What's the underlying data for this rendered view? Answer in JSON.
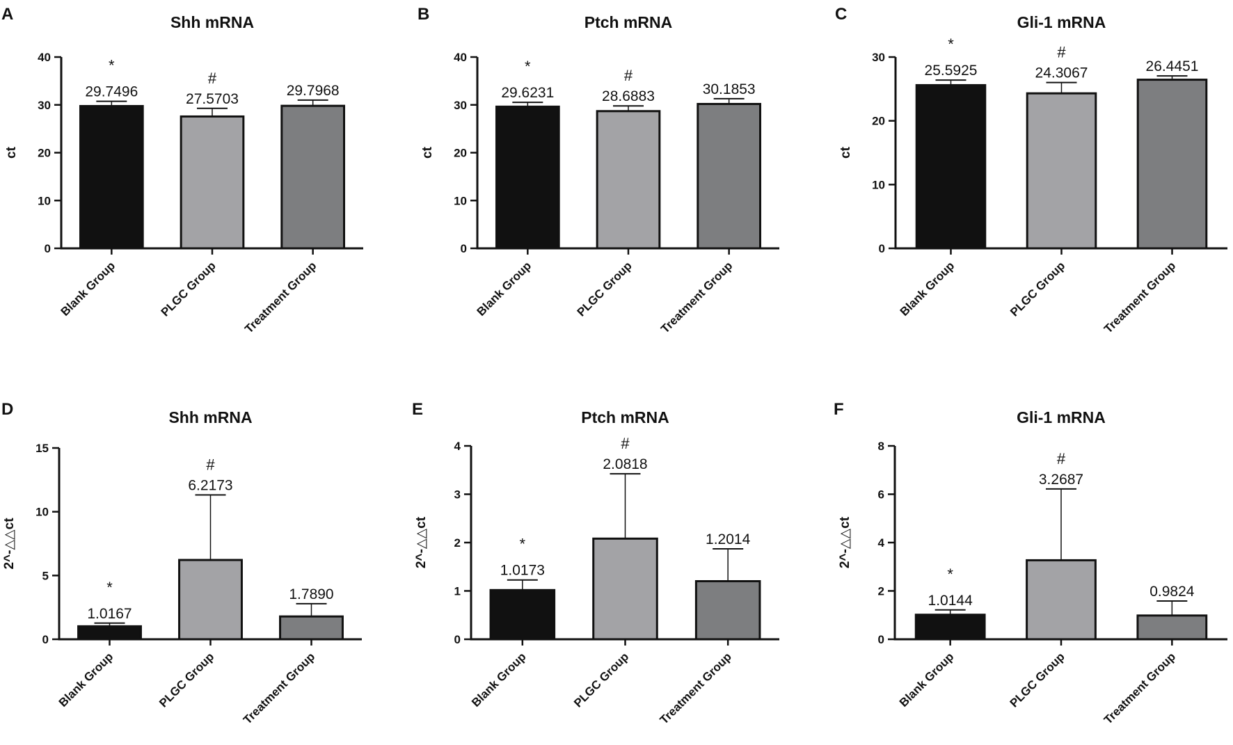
{
  "chart_data": [
    {
      "type": "bar",
      "panel": "A",
      "title": "Shh mRNA",
      "xlabel": "",
      "ylabel": "ct",
      "ylim": [
        0,
        40
      ],
      "yticks": [
        "0",
        "10",
        "20",
        "30",
        "40"
      ],
      "categories": [
        "Blank Group",
        "PLGC Group",
        "Treatment Group"
      ],
      "values": [
        29.7496,
        27.5703,
        29.7968
      ],
      "errors": [
        1.0,
        1.7,
        1.2
      ],
      "value_labels": [
        "29.7496",
        "27.5703",
        "29.7968"
      ],
      "markers": [
        "*",
        "#",
        ""
      ],
      "colors": [
        "#111111",
        "#a3a3a6",
        "#7d7e80"
      ]
    },
    {
      "type": "bar",
      "panel": "B",
      "title": "Ptch mRNA",
      "xlabel": "",
      "ylabel": "ct",
      "ylim": [
        0,
        40
      ],
      "yticks": [
        "0",
        "10",
        "20",
        "30",
        "40"
      ],
      "categories": [
        "Blank Group",
        "PLGC Group",
        "Treatment Group"
      ],
      "values": [
        29.6231,
        28.6883,
        30.1853
      ],
      "errors": [
        0.9,
        1.1,
        1.1
      ],
      "value_labels": [
        "29.6231",
        "28.6883",
        "30.1853"
      ],
      "markers": [
        "*",
        "#",
        ""
      ],
      "colors": [
        "#111111",
        "#a3a3a6",
        "#7d7e80"
      ]
    },
    {
      "type": "bar",
      "panel": "C",
      "title": "Gli-1 mRNA",
      "xlabel": "",
      "ylabel": "ct",
      "ylim": [
        0,
        30
      ],
      "yticks": [
        "0",
        "10",
        "20",
        "30"
      ],
      "categories": [
        "Blank Group",
        "PLGC Group",
        "Treatment Group"
      ],
      "values": [
        25.5925,
        24.3067,
        26.4451
      ],
      "errors": [
        0.8,
        1.7,
        0.6
      ],
      "value_labels": [
        "25.5925",
        "24.3067",
        "26.4451"
      ],
      "markers": [
        "*",
        "#",
        ""
      ],
      "colors": [
        "#111111",
        "#a3a3a6",
        "#7d7e80"
      ]
    },
    {
      "type": "bar",
      "panel": "D",
      "title": "Shh mRNA",
      "xlabel": "",
      "ylabel": "2^-△△ct",
      "ylim": [
        0,
        15
      ],
      "yticks": [
        "0",
        "5",
        "10",
        "15"
      ],
      "categories": [
        "Blank Group",
        "PLGC Group",
        "Treatment Group"
      ],
      "values": [
        1.0167,
        6.2173,
        1.789
      ],
      "errors": [
        0.25,
        5.1,
        1.0
      ],
      "value_labels": [
        "1.0167",
        "6.2173",
        "1.7890"
      ],
      "markers": [
        "*",
        "#",
        ""
      ],
      "colors": [
        "#111111",
        "#a3a3a6",
        "#7d7e80"
      ]
    },
    {
      "type": "bar",
      "panel": "E",
      "title": "Ptch mRNA",
      "xlabel": "",
      "ylabel": "2^-△△ct",
      "ylim": [
        0,
        4
      ],
      "yticks": [
        "0",
        "1",
        "2",
        "3",
        "4"
      ],
      "categories": [
        "Blank Group",
        "PLGC Group",
        "Treatment Group"
      ],
      "values": [
        1.0173,
        2.0818,
        1.2014
      ],
      "errors": [
        0.21,
        1.34,
        0.67
      ],
      "value_labels": [
        "1.0173",
        "2.0818",
        "1.2014"
      ],
      "markers": [
        "*",
        "#",
        ""
      ],
      "colors": [
        "#111111",
        "#a3a3a6",
        "#7d7e80"
      ]
    },
    {
      "type": "bar",
      "panel": "F",
      "title": "Gli-1 mRNA",
      "xlabel": "",
      "ylabel": "2^-△△ct",
      "ylim": [
        0,
        8
      ],
      "yticks": [
        "0",
        "2",
        "4",
        "6",
        "8"
      ],
      "categories": [
        "Blank Group",
        "PLGC Group",
        "Treatment Group"
      ],
      "values": [
        1.0144,
        3.2687,
        0.9824
      ],
      "errors": [
        0.2,
        2.95,
        0.6
      ],
      "value_labels": [
        "1.0144",
        "3.2687",
        "0.9824"
      ],
      "markers": [
        "*",
        "#",
        ""
      ],
      "colors": [
        "#111111",
        "#a3a3a6",
        "#7d7e80"
      ]
    }
  ]
}
